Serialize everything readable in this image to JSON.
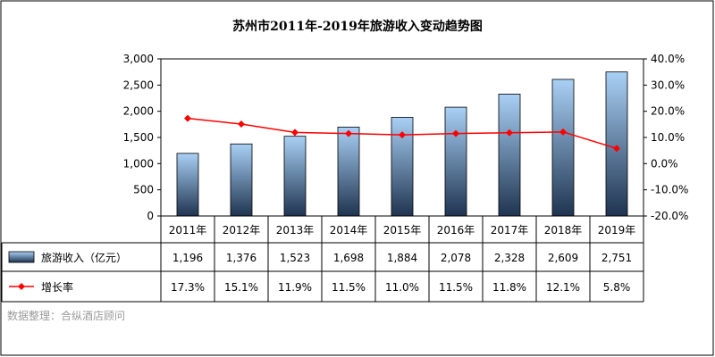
{
  "chart_data": {
    "type": "bar+line",
    "title": "苏州市2011年-2019年旅游收入变动趋势图",
    "categories": [
      "2011年",
      "2012年",
      "2013年",
      "2014年",
      "2015年",
      "2016年",
      "2017年",
      "2018年",
      "2019年"
    ],
    "series": [
      {
        "name": "旅游收入（亿元）",
        "type": "bar",
        "axis": "left",
        "values": [
          1196,
          1376,
          1523,
          1698,
          1884,
          2078,
          2328,
          2609,
          2751
        ],
        "labels": [
          "1,196",
          "1,376",
          "1,523",
          "1,698",
          "1,884",
          "2,078",
          "2,328",
          "2,609",
          "2,751"
        ]
      },
      {
        "name": "增长率",
        "type": "line",
        "axis": "right",
        "values": [
          17.3,
          15.1,
          11.9,
          11.5,
          11.0,
          11.5,
          11.8,
          12.1,
          5.8
        ],
        "labels": [
          "17.3%",
          "15.1%",
          "11.9%",
          "11.5%",
          "11.0%",
          "11.5%",
          "11.8%",
          "12.1%",
          "5.8%"
        ]
      }
    ],
    "y_left": {
      "ylim": [
        0,
        3000
      ],
      "ticks": [
        "0",
        "500",
        "1,000",
        "1,500",
        "2,000",
        "2,500",
        "3,000"
      ]
    },
    "y_right": {
      "ylim": [
        -20,
        40
      ],
      "ticks": [
        "-20.0%",
        "-10.0%",
        "0.0%",
        "10.0%",
        "20.0%",
        "30.0%",
        "40.0%"
      ]
    },
    "data_table": true,
    "grid": false,
    "colors": {
      "bar_top": "#a9d0f5",
      "bar_bottom": "#1f3450",
      "line": "#ff0000",
      "border": "#000000"
    }
  },
  "source_note": "数据整理：合纵酒店顾问"
}
